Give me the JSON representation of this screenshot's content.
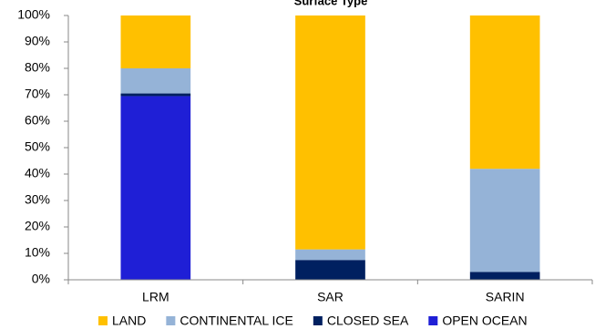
{
  "chart_data": {
    "type": "stacked_bar",
    "title": "Surface Type",
    "categories": [
      "LRM",
      "SAR",
      "SARIN"
    ],
    "series": [
      {
        "name": "LAND",
        "color": "#ffc000",
        "values": [
          20,
          88.5,
          58
        ]
      },
      {
        "name": "CONTINENTAL ICE",
        "color": "#95b3d7",
        "values": [
          9.5,
          4,
          39
        ]
      },
      {
        "name": "CLOSED SEA",
        "color": "#002060",
        "values": [
          1,
          7.5,
          3
        ]
      },
      {
        "name": "OPEN OCEAN",
        "color": "#1f1fd6",
        "values": [
          69.5,
          0,
          0
        ]
      }
    ],
    "ylim": [
      0,
      100
    ],
    "yticks": [
      {
        "value": 0,
        "label": "0%"
      },
      {
        "value": 10,
        "label": "10%"
      },
      {
        "value": 20,
        "label": "20%"
      },
      {
        "value": 30,
        "label": "30%"
      },
      {
        "value": 40,
        "label": "40%"
      },
      {
        "value": 50,
        "label": "50%"
      },
      {
        "value": 60,
        "label": "60%"
      },
      {
        "value": 70,
        "label": "70%"
      },
      {
        "value": 80,
        "label": "80%"
      },
      {
        "value": 90,
        "label": "90%"
      },
      {
        "value": 100,
        "label": "100%"
      }
    ],
    "legend": "bottom",
    "grid": false
  }
}
